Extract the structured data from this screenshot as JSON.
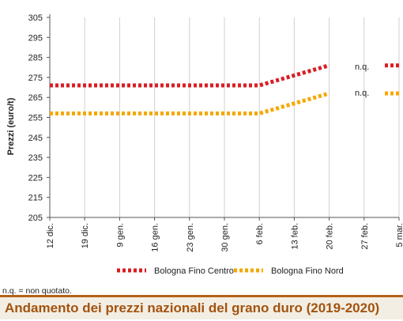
{
  "chart_data": {
    "type": "line",
    "title": "Andamento dei prezzi nazionali del grano duro (2019-2020)",
    "ylabel": "Prezzi (euro/t)",
    "xlabel": "",
    "ylim": [
      205,
      305
    ],
    "yticks": [
      205,
      215,
      225,
      235,
      245,
      255,
      265,
      275,
      285,
      295,
      305
    ],
    "categories": [
      "12 dic.",
      "19 dic.",
      "9 gen.",
      "16 gen.",
      "23 gen.",
      "30 gen.",
      "6 feb.",
      "13 feb.",
      "20 feb.",
      "27 feb.",
      "5 mar."
    ],
    "grid": "vertical",
    "legend_position": "bottom",
    "series": [
      {
        "name": "Bologna Fino Centro",
        "color": "#d81e24",
        "values": [
          271,
          271,
          271,
          271,
          271,
          271,
          271,
          276,
          281,
          null,
          281
        ]
      },
      {
        "name": "Bologna Fino Nord",
        "color": "#f5a800",
        "values": [
          257,
          257,
          257,
          257,
          257,
          257,
          257,
          262,
          267,
          null,
          267
        ]
      }
    ],
    "annotations": [
      "n.q.",
      "n.q."
    ],
    "footnote": "n.q. = non quotato."
  }
}
